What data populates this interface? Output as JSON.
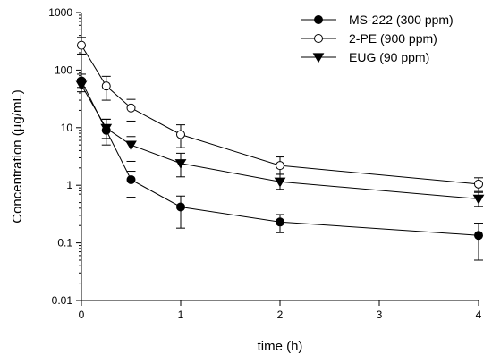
{
  "chart_data": {
    "type": "scatter",
    "xlabel": "time (h)",
    "ylabel": "Concentration (µg/mL)",
    "x_ticks": [
      0,
      1,
      2,
      3,
      4
    ],
    "xlim": [
      0,
      4
    ],
    "y_scale": "log",
    "ylim": [
      0.01,
      1000
    ],
    "y_ticks": [
      0.01,
      0.1,
      1,
      10,
      100,
      1000
    ],
    "y_tick_labels": [
      "0.01",
      "0.1",
      "1",
      "10",
      "100",
      "1000"
    ],
    "legend_position": "top-right",
    "series": [
      {
        "name": "MS-222 (300 ppm)",
        "marker": "filled-circle",
        "x": [
          0,
          0.25,
          0.5,
          1,
          2,
          4
        ],
        "y": [
          65,
          9,
          1.25,
          0.42,
          0.23,
          0.135
        ],
        "err_low": [
          50,
          5,
          0.62,
          0.18,
          0.15,
          0.05
        ],
        "err_high": [
          85,
          14,
          1.75,
          0.65,
          0.31,
          0.22
        ]
      },
      {
        "name": "2-PE (900 ppm)",
        "marker": "open-circle",
        "x": [
          0,
          0.25,
          0.5,
          1,
          2,
          4
        ],
        "y": [
          270,
          53,
          22,
          7.6,
          2.2,
          1.05
        ],
        "err_low": [
          190,
          30,
          13,
          4.5,
          1.55,
          0.78
        ],
        "err_high": [
          370,
          78,
          31,
          11.2,
          3.1,
          1.35
        ]
      },
      {
        "name": "EUG (90 ppm)",
        "marker": "filled-triangle-down",
        "x": [
          0,
          0.25,
          0.5,
          1,
          2,
          4
        ],
        "y": [
          55,
          9.8,
          5,
          2.4,
          1.15,
          0.58
        ],
        "err_low": [
          42,
          6.5,
          2.6,
          1.4,
          0.85,
          0.43
        ],
        "err_high": [
          70,
          14,
          7,
          3.6,
          1.55,
          0.75
        ]
      }
    ]
  }
}
